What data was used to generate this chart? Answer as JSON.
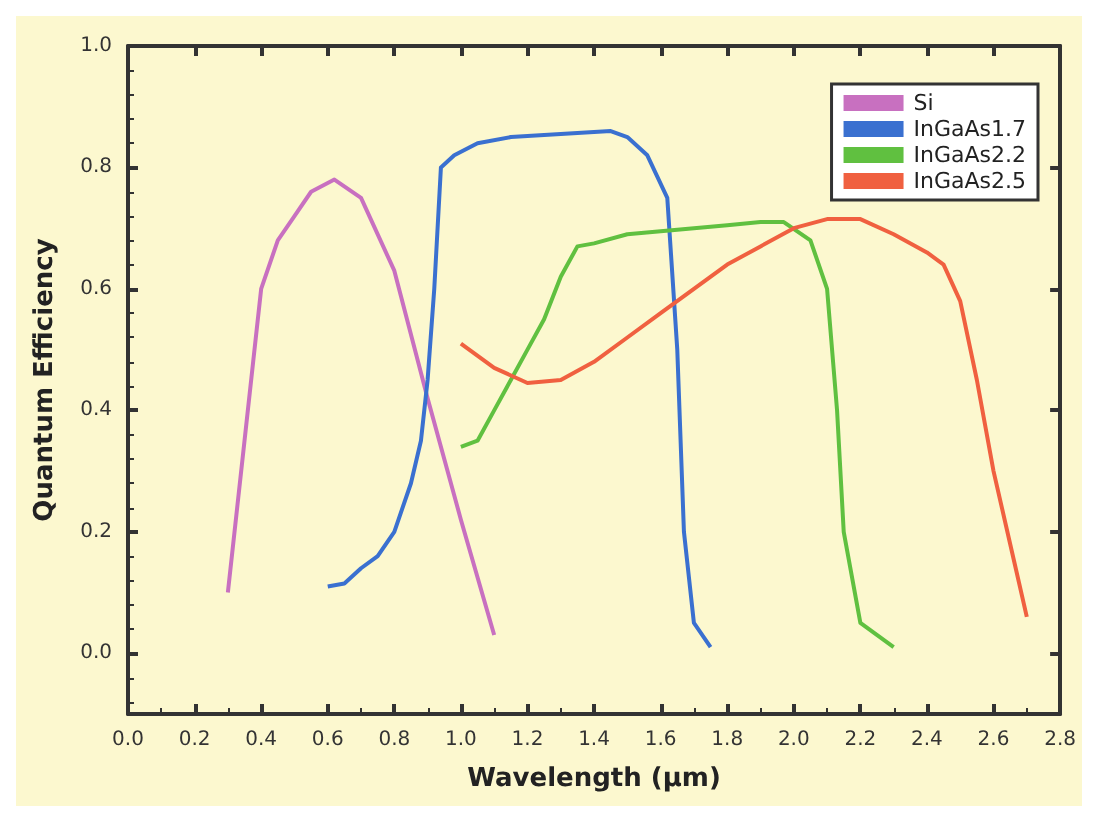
{
  "chart_data": {
    "type": "line",
    "xlabel": "Wavelength (µm)",
    "ylabel": "Quantum Efficiency",
    "xlim": [
      0,
      2.8
    ],
    "ylim": [
      -0.1,
      1.0
    ],
    "xticks": [
      {
        "value": 0,
        "label": "0.0"
      },
      {
        "value": 0.2,
        "label": "0.2"
      },
      {
        "value": 0.4,
        "label": "0.4"
      },
      {
        "value": 0.6,
        "label": "0.6"
      },
      {
        "value": 0.8,
        "label": "0.8"
      },
      {
        "value": 1.0,
        "label": "1.0"
      },
      {
        "value": 1.2,
        "label": "1.2"
      },
      {
        "value": 1.4,
        "label": "1.4"
      },
      {
        "value": 1.6,
        "label": "1.6"
      },
      {
        "value": 1.8,
        "label": "1.8"
      },
      {
        "value": 2.0,
        "label": "2.0"
      },
      {
        "value": 2.2,
        "label": "2.2"
      },
      {
        "value": 2.4,
        "label": "2.4"
      },
      {
        "value": 2.6,
        "label": "2.6"
      },
      {
        "value": 2.8,
        "label": "2.8"
      }
    ],
    "yticks": [
      {
        "value": 0,
        "label": "0.0"
      },
      {
        "value": 0.2,
        "label": "0.2"
      },
      {
        "value": 0.4,
        "label": "0.4"
      },
      {
        "value": 0.6,
        "label": "0.6"
      },
      {
        "value": 0.8,
        "label": "0.8"
      },
      {
        "value": 1.0,
        "label": "1.0"
      }
    ],
    "grid": false,
    "legend": "top right",
    "marker": "none",
    "line_style": "solid",
    "series": [
      {
        "name": "Si",
        "color": "#c870c0",
        "x": [
          0.3,
          0.35,
          0.4,
          0.45,
          0.5,
          0.55,
          0.62,
          0.7,
          0.8,
          0.9,
          1.0,
          1.1
        ],
        "values": [
          0.1,
          0.35,
          0.6,
          0.68,
          0.72,
          0.76,
          0.78,
          0.75,
          0.63,
          0.42,
          0.22,
          0.03
        ]
      },
      {
        "name": "InGaAs1.7",
        "color": "#3a70d0",
        "x": [
          0.6,
          0.65,
          0.7,
          0.75,
          0.8,
          0.85,
          0.88,
          0.9,
          0.92,
          0.94,
          0.98,
          1.05,
          1.15,
          1.3,
          1.45,
          1.5,
          1.56,
          1.62,
          1.65,
          1.67,
          1.7,
          1.75
        ],
        "values": [
          0.11,
          0.115,
          0.14,
          0.16,
          0.2,
          0.28,
          0.35,
          0.45,
          0.6,
          0.8,
          0.82,
          0.84,
          0.85,
          0.855,
          0.86,
          0.85,
          0.82,
          0.75,
          0.5,
          0.2,
          0.05,
          0.01
        ]
      },
      {
        "name": "InGaAs2.2",
        "color": "#60c040",
        "x": [
          1.0,
          1.05,
          1.1,
          1.15,
          1.2,
          1.25,
          1.3,
          1.35,
          1.4,
          1.5,
          1.6,
          1.7,
          1.8,
          1.9,
          1.97,
          2.05,
          2.1,
          2.13,
          2.15,
          2.2,
          2.3
        ],
        "values": [
          0.34,
          0.35,
          0.4,
          0.45,
          0.5,
          0.55,
          0.62,
          0.67,
          0.675,
          0.69,
          0.695,
          0.7,
          0.705,
          0.71,
          0.71,
          0.68,
          0.6,
          0.4,
          0.2,
          0.05,
          0.01
        ]
      },
      {
        "name": "InGaAs2.5",
        "color": "#f06040",
        "x": [
          1.0,
          1.1,
          1.2,
          1.3,
          1.4,
          1.5,
          1.6,
          1.7,
          1.8,
          1.9,
          2.0,
          2.1,
          2.2,
          2.3,
          2.4,
          2.45,
          2.5,
          2.55,
          2.6,
          2.65,
          2.7
        ],
        "values": [
          0.51,
          0.47,
          0.445,
          0.45,
          0.48,
          0.52,
          0.56,
          0.6,
          0.64,
          0.67,
          0.7,
          0.715,
          0.715,
          0.69,
          0.66,
          0.64,
          0.58,
          0.45,
          0.3,
          0.18,
          0.06
        ]
      }
    ]
  }
}
